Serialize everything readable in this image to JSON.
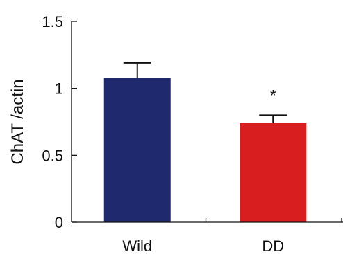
{
  "chart_data": {
    "type": "bar",
    "title": "",
    "xlabel": "",
    "ylabel": "ChAT /actin",
    "categories": [
      "Wild",
      "DD"
    ],
    "values": [
      1.08,
      0.74
    ],
    "errors": [
      0.11,
      0.06
    ],
    "colors": [
      "#1f2a6e",
      "#d81e1e"
    ],
    "ylim": [
      0,
      1.5
    ],
    "yticks": [
      0,
      0.5,
      1,
      1.5
    ],
    "ytick_labels": [
      "0",
      "0.5",
      "1",
      "1.5"
    ],
    "grid": false,
    "legend": "none",
    "annotations": [
      {
        "category": "DD",
        "text": "*"
      }
    ]
  }
}
